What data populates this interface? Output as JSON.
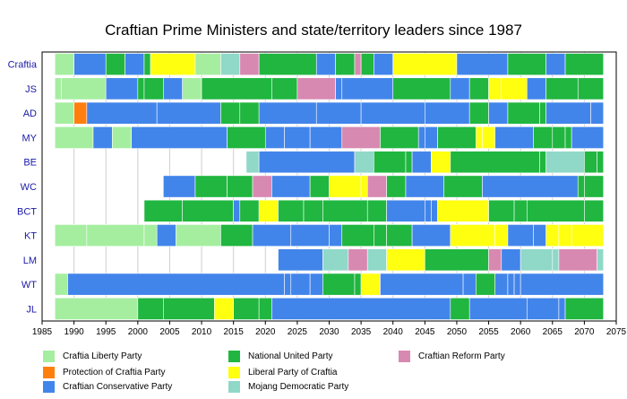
{
  "chart_data": {
    "type": "timeline",
    "title": "Craftian Prime Ministers and state/territory leaders since 1987",
    "xlim": [
      1985,
      2075
    ],
    "xticks": [
      1985,
      1990,
      1995,
      2000,
      2005,
      2010,
      2015,
      2020,
      2025,
      2030,
      2035,
      2040,
      2045,
      2050,
      2055,
      2060,
      2065,
      2070,
      2075
    ],
    "parties": [
      {
        "key": "L",
        "name": "Craftia Liberty Party",
        "color": "#a5eea0"
      },
      {
        "key": "P",
        "name": "Protection of Craftia Party",
        "color": "#ff7f0e"
      },
      {
        "key": "C",
        "name": "Craftian Conservative Party",
        "color": "#4285ea"
      },
      {
        "key": "N",
        "name": "National United Party",
        "color": "#20b640"
      },
      {
        "key": "Y",
        "name": "Liberal Party of Craftia",
        "color": "#ffff10"
      },
      {
        "key": "M",
        "name": "Mojang Democratic Party",
        "color": "#90d8c8"
      },
      {
        "key": "R",
        "name": "Craftian Reform Party",
        "color": "#d889b1"
      }
    ],
    "rows": [
      {
        "label": "Craftia",
        "segments": [
          {
            "s": 1987,
            "e": 1990,
            "p": "L"
          },
          {
            "s": 1990,
            "e": 1995,
            "p": "C"
          },
          {
            "s": 1995,
            "e": 1998,
            "p": "N"
          },
          {
            "s": 1998,
            "e": 2001,
            "p": "C"
          },
          {
            "s": 2001,
            "e": 2002,
            "p": "N"
          },
          {
            "s": 2002,
            "e": 2009,
            "p": "Y"
          },
          {
            "s": 2009,
            "e": 2013,
            "p": "L"
          },
          {
            "s": 2013,
            "e": 2016,
            "p": "M"
          },
          {
            "s": 2016,
            "e": 2019,
            "p": "R"
          },
          {
            "s": 2019,
            "e": 2028,
            "p": "N"
          },
          {
            "s": 2028,
            "e": 2031,
            "p": "C"
          },
          {
            "s": 2031,
            "e": 2034,
            "p": "N"
          },
          {
            "s": 2034,
            "e": 2035,
            "p": "R"
          },
          {
            "s": 2035,
            "e": 2037,
            "p": "N"
          },
          {
            "s": 2037,
            "e": 2040,
            "p": "C"
          },
          {
            "s": 2040,
            "e": 2050,
            "p": "Y"
          },
          {
            "s": 2050,
            "e": 2058,
            "p": "C"
          },
          {
            "s": 2058,
            "e": 2064,
            "p": "N"
          },
          {
            "s": 2064,
            "e": 2067,
            "p": "C"
          },
          {
            "s": 2067,
            "e": 2073,
            "p": "N"
          }
        ]
      },
      {
        "label": "JS",
        "segments": [
          {
            "s": 1987,
            "e": 1988,
            "p": "L"
          },
          {
            "s": 1988,
            "e": 1995,
            "p": "L"
          },
          {
            "s": 1995,
            "e": 2000,
            "p": "C"
          },
          {
            "s": 2000,
            "e": 2001,
            "p": "N"
          },
          {
            "s": 2001,
            "e": 2004,
            "p": "N"
          },
          {
            "s": 2004,
            "e": 2007,
            "p": "C"
          },
          {
            "s": 2007,
            "e": 2010,
            "p": "L"
          },
          {
            "s": 2010,
            "e": 2021,
            "p": "N"
          },
          {
            "s": 2021,
            "e": 2025,
            "p": "N"
          },
          {
            "s": 2025,
            "e": 2031,
            "p": "R"
          },
          {
            "s": 2031,
            "e": 2032,
            "p": "C"
          },
          {
            "s": 2032,
            "e": 2040,
            "p": "C"
          },
          {
            "s": 2040,
            "e": 2049,
            "p": "N"
          },
          {
            "s": 2049,
            "e": 2052,
            "p": "C"
          },
          {
            "s": 2052,
            "e": 2055,
            "p": "N"
          },
          {
            "s": 2055,
            "e": 2057,
            "p": "Y"
          },
          {
            "s": 2057,
            "e": 2061,
            "p": "Y"
          },
          {
            "s": 2061,
            "e": 2064,
            "p": "C"
          },
          {
            "s": 2064,
            "e": 2069,
            "p": "N"
          },
          {
            "s": 2069,
            "e": 2073,
            "p": "N"
          }
        ]
      },
      {
        "label": "AD",
        "segments": [
          {
            "s": 1987,
            "e": 1990,
            "p": "L"
          },
          {
            "s": 1990,
            "e": 1992,
            "p": "P"
          },
          {
            "s": 1992,
            "e": 2003,
            "p": "C"
          },
          {
            "s": 2003,
            "e": 2013,
            "p": "C"
          },
          {
            "s": 2013,
            "e": 2016,
            "p": "N"
          },
          {
            "s": 2016,
            "e": 2019,
            "p": "N"
          },
          {
            "s": 2019,
            "e": 2028,
            "p": "C"
          },
          {
            "s": 2028,
            "e": 2035,
            "p": "C"
          },
          {
            "s": 2035,
            "e": 2045,
            "p": "C"
          },
          {
            "s": 2045,
            "e": 2052,
            "p": "C"
          },
          {
            "s": 2052,
            "e": 2055,
            "p": "N"
          },
          {
            "s": 2055,
            "e": 2058,
            "p": "C"
          },
          {
            "s": 2058,
            "e": 2063,
            "p": "N"
          },
          {
            "s": 2063,
            "e": 2064,
            "p": "N"
          },
          {
            "s": 2064,
            "e": 2071,
            "p": "C"
          },
          {
            "s": 2071,
            "e": 2073,
            "p": "C"
          }
        ]
      },
      {
        "label": "MY",
        "segments": [
          {
            "s": 1987,
            "e": 1993,
            "p": "L"
          },
          {
            "s": 1993,
            "e": 1996,
            "p": "C"
          },
          {
            "s": 1996,
            "e": 1999,
            "p": "L"
          },
          {
            "s": 1999,
            "e": 2014,
            "p": "C"
          },
          {
            "s": 2014,
            "e": 2020,
            "p": "N"
          },
          {
            "s": 2020,
            "e": 2023,
            "p": "C"
          },
          {
            "s": 2023,
            "e": 2027,
            "p": "C"
          },
          {
            "s": 2027,
            "e": 2032,
            "p": "C"
          },
          {
            "s": 2032,
            "e": 2038,
            "p": "R"
          },
          {
            "s": 2038,
            "e": 2044,
            "p": "N"
          },
          {
            "s": 2044,
            "e": 2045,
            "p": "C"
          },
          {
            "s": 2045,
            "e": 2047,
            "p": "C"
          },
          {
            "s": 2047,
            "e": 2053,
            "p": "N"
          },
          {
            "s": 2053,
            "e": 2054,
            "p": "Y"
          },
          {
            "s": 2054,
            "e": 2056,
            "p": "Y"
          },
          {
            "s": 2056,
            "e": 2062,
            "p": "C"
          },
          {
            "s": 2062,
            "e": 2065,
            "p": "N"
          },
          {
            "s": 2065,
            "e": 2067,
            "p": "N"
          },
          {
            "s": 2067,
            "e": 2068,
            "p": "N"
          },
          {
            "s": 2068,
            "e": 2073,
            "p": "C"
          }
        ]
      },
      {
        "label": "BE",
        "segments": [
          {
            "s": 2017,
            "e": 2019,
            "p": "M"
          },
          {
            "s": 2019,
            "e": 2034,
            "p": "C"
          },
          {
            "s": 2034,
            "e": 2037,
            "p": "M"
          },
          {
            "s": 2037,
            "e": 2042,
            "p": "N"
          },
          {
            "s": 2042,
            "e": 2043,
            "p": "N"
          },
          {
            "s": 2043,
            "e": 2046,
            "p": "C"
          },
          {
            "s": 2046,
            "e": 2049,
            "p": "Y"
          },
          {
            "s": 2049,
            "e": 2063,
            "p": "N"
          },
          {
            "s": 2063,
            "e": 2064,
            "p": "N"
          },
          {
            "s": 2064,
            "e": 2070,
            "p": "M"
          },
          {
            "s": 2070,
            "e": 2072,
            "p": "N"
          },
          {
            "s": 2072,
            "e": 2073,
            "p": "N"
          }
        ]
      },
      {
        "label": "WC",
        "segments": [
          {
            "s": 2004,
            "e": 2009,
            "p": "C"
          },
          {
            "s": 2009,
            "e": 2014,
            "p": "N"
          },
          {
            "s": 2014,
            "e": 2018,
            "p": "N"
          },
          {
            "s": 2018,
            "e": 2021,
            "p": "R"
          },
          {
            "s": 2021,
            "e": 2027,
            "p": "C"
          },
          {
            "s": 2027,
            "e": 2030,
            "p": "N"
          },
          {
            "s": 2030,
            "e": 2035,
            "p": "Y"
          },
          {
            "s": 2035,
            "e": 2036,
            "p": "Y"
          },
          {
            "s": 2036,
            "e": 2039,
            "p": "R"
          },
          {
            "s": 2039,
            "e": 2042,
            "p": "N"
          },
          {
            "s": 2042,
            "e": 2048,
            "p": "C"
          },
          {
            "s": 2048,
            "e": 2054,
            "p": "N"
          },
          {
            "s": 2054,
            "e": 2069,
            "p": "C"
          },
          {
            "s": 2069,
            "e": 2070,
            "p": "N"
          },
          {
            "s": 2070,
            "e": 2073,
            "p": "N"
          }
        ]
      },
      {
        "label": "BCT",
        "segments": [
          {
            "s": 2001,
            "e": 2007,
            "p": "N"
          },
          {
            "s": 2007,
            "e": 2015,
            "p": "N"
          },
          {
            "s": 2015,
            "e": 2016,
            "p": "C"
          },
          {
            "s": 2016,
            "e": 2019,
            "p": "N"
          },
          {
            "s": 2019,
            "e": 2022,
            "p": "Y"
          },
          {
            "s": 2022,
            "e": 2026,
            "p": "N"
          },
          {
            "s": 2026,
            "e": 2029,
            "p": "N"
          },
          {
            "s": 2029,
            "e": 2036,
            "p": "N"
          },
          {
            "s": 2036,
            "e": 2039,
            "p": "N"
          },
          {
            "s": 2039,
            "e": 2045,
            "p": "C"
          },
          {
            "s": 2045,
            "e": 2046,
            "p": "C"
          },
          {
            "s": 2046,
            "e": 2047,
            "p": "C"
          },
          {
            "s": 2047,
            "e": 2055,
            "p": "Y"
          },
          {
            "s": 2055,
            "e": 2059,
            "p": "N"
          },
          {
            "s": 2059,
            "e": 2061,
            "p": "N"
          },
          {
            "s": 2061,
            "e": 2070,
            "p": "N"
          },
          {
            "s": 2070,
            "e": 2073,
            "p": "N"
          }
        ]
      },
      {
        "label": "KT",
        "segments": [
          {
            "s": 1987,
            "e": 1992,
            "p": "L"
          },
          {
            "s": 1992,
            "e": 2001,
            "p": "L"
          },
          {
            "s": 2001,
            "e": 2003,
            "p": "L"
          },
          {
            "s": 2003,
            "e": 2006,
            "p": "C"
          },
          {
            "s": 2006,
            "e": 2013,
            "p": "L"
          },
          {
            "s": 2013,
            "e": 2018,
            "p": "N"
          },
          {
            "s": 2018,
            "e": 2024,
            "p": "C"
          },
          {
            "s": 2024,
            "e": 2030,
            "p": "C"
          },
          {
            "s": 2030,
            "e": 2032,
            "p": "C"
          },
          {
            "s": 2032,
            "e": 2037,
            "p": "N"
          },
          {
            "s": 2037,
            "e": 2039,
            "p": "N"
          },
          {
            "s": 2039,
            "e": 2043,
            "p": "N"
          },
          {
            "s": 2043,
            "e": 2049,
            "p": "C"
          },
          {
            "s": 2049,
            "e": 2056,
            "p": "Y"
          },
          {
            "s": 2056,
            "e": 2058,
            "p": "Y"
          },
          {
            "s": 2058,
            "e": 2062,
            "p": "C"
          },
          {
            "s": 2062,
            "e": 2064,
            "p": "C"
          },
          {
            "s": 2064,
            "e": 2066,
            "p": "Y"
          },
          {
            "s": 2066,
            "e": 2068,
            "p": "Y"
          },
          {
            "s": 2068,
            "e": 2073,
            "p": "Y"
          }
        ]
      },
      {
        "label": "LM",
        "segments": [
          {
            "s": 2022,
            "e": 2029,
            "p": "C"
          },
          {
            "s": 2029,
            "e": 2033,
            "p": "M"
          },
          {
            "s": 2033,
            "e": 2036,
            "p": "R"
          },
          {
            "s": 2036,
            "e": 2039,
            "p": "M"
          },
          {
            "s": 2039,
            "e": 2045,
            "p": "Y"
          },
          {
            "s": 2045,
            "e": 2055,
            "p": "N"
          },
          {
            "s": 2055,
            "e": 2057,
            "p": "R"
          },
          {
            "s": 2057,
            "e": 2060,
            "p": "C"
          },
          {
            "s": 2060,
            "e": 2065,
            "p": "M"
          },
          {
            "s": 2065,
            "e": 2066,
            "p": "M"
          },
          {
            "s": 2066,
            "e": 2072,
            "p": "R"
          },
          {
            "s": 2072,
            "e": 2073,
            "p": "M"
          }
        ]
      },
      {
        "label": "WT",
        "segments": [
          {
            "s": 1987,
            "e": 1989,
            "p": "L"
          },
          {
            "s": 1989,
            "e": 2023,
            "p": "C"
          },
          {
            "s": 2023,
            "e": 2024,
            "p": "C"
          },
          {
            "s": 2024,
            "e": 2027,
            "p": "C"
          },
          {
            "s": 2027,
            "e": 2029,
            "p": "C"
          },
          {
            "s": 2029,
            "e": 2034,
            "p": "N"
          },
          {
            "s": 2034,
            "e": 2035,
            "p": "N"
          },
          {
            "s": 2035,
            "e": 2038,
            "p": "Y"
          },
          {
            "s": 2038,
            "e": 2051,
            "p": "C"
          },
          {
            "s": 2051,
            "e": 2053,
            "p": "C"
          },
          {
            "s": 2053,
            "e": 2056,
            "p": "N"
          },
          {
            "s": 2056,
            "e": 2058,
            "p": "C"
          },
          {
            "s": 2058,
            "e": 2059,
            "p": "C"
          },
          {
            "s": 2059,
            "e": 2060,
            "p": "C"
          },
          {
            "s": 2060,
            "e": 2073,
            "p": "C"
          }
        ]
      },
      {
        "label": "JL",
        "segments": [
          {
            "s": 1987,
            "e": 2000,
            "p": "L"
          },
          {
            "s": 2000,
            "e": 2004,
            "p": "N"
          },
          {
            "s": 2004,
            "e": 2012,
            "p": "N"
          },
          {
            "s": 2012,
            "e": 2015,
            "p": "Y"
          },
          {
            "s": 2015,
            "e": 2019,
            "p": "N"
          },
          {
            "s": 2019,
            "e": 2021,
            "p": "N"
          },
          {
            "s": 2021,
            "e": 2049,
            "p": "C"
          },
          {
            "s": 2049,
            "e": 2052,
            "p": "N"
          },
          {
            "s": 2052,
            "e": 2061,
            "p": "C"
          },
          {
            "s": 2061,
            "e": 2066,
            "p": "C"
          },
          {
            "s": 2066,
            "e": 2067,
            "p": "C"
          },
          {
            "s": 2067,
            "e": 2073,
            "p": "N"
          }
        ]
      }
    ]
  }
}
